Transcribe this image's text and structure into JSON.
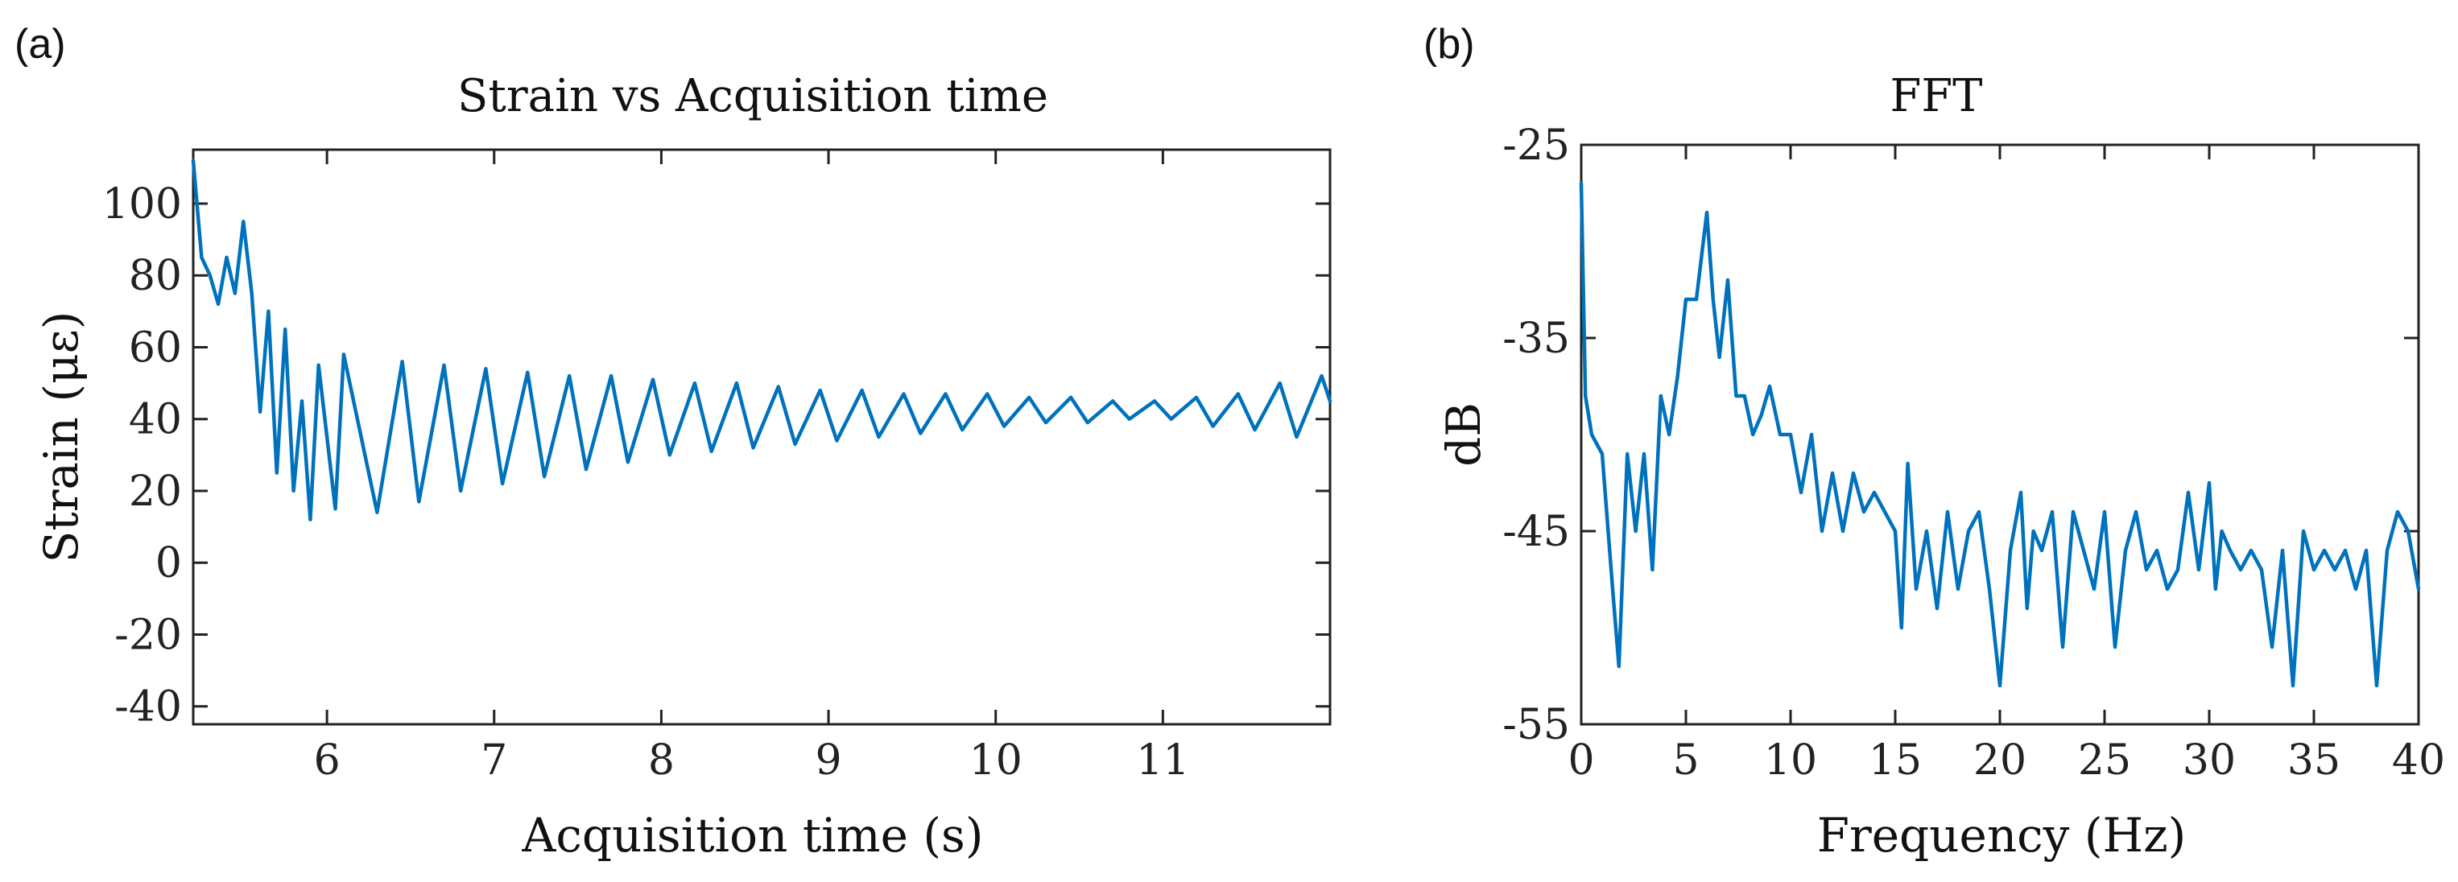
{
  "chart_data": [
    {
      "type": "line",
      "panel_label": "(a)",
      "title": "Strain vs Acquisition time",
      "xlabel": "Acquisition time (s)",
      "ylabel": "Strain (με)",
      "xlim": [
        5.2,
        12.0
      ],
      "ylim": [
        -45,
        115
      ],
      "xticks": [
        6,
        7,
        8,
        9,
        10,
        11
      ],
      "yticks": [
        -40,
        -20,
        0,
        20,
        40,
        60,
        80,
        100
      ],
      "series": [
        {
          "name": "Strain",
          "color": "#0072BD",
          "x": [
            5.2,
            5.25,
            5.3,
            5.35,
            5.4,
            5.45,
            5.5,
            5.55,
            5.6,
            5.65,
            5.7,
            5.75,
            5.8,
            5.85,
            5.9,
            5.95,
            6.05,
            6.1,
            6.3,
            6.45,
            6.55,
            6.7,
            6.8,
            6.95,
            7.05,
            7.2,
            7.3,
            7.45,
            7.55,
            7.7,
            7.8,
            7.95,
            8.05,
            8.2,
            8.3,
            8.45,
            8.55,
            8.7,
            8.8,
            8.95,
            9.05,
            9.2,
            9.3,
            9.45,
            9.55,
            9.7,
            9.8,
            9.95,
            10.05,
            10.2,
            10.3,
            10.45,
            10.55,
            10.7,
            10.8,
            10.95,
            11.05,
            11.2,
            11.3,
            11.45,
            11.55,
            11.7,
            11.8,
            11.95,
            12.0
          ],
          "y": [
            112,
            85,
            80,
            72,
            85,
            75,
            95,
            75,
            42,
            70,
            25,
            65,
            20,
            45,
            12,
            55,
            15,
            58,
            14,
            56,
            17,
            55,
            20,
            54,
            22,
            53,
            24,
            52,
            26,
            52,
            28,
            51,
            30,
            50,
            31,
            50,
            32,
            49,
            33,
            48,
            34,
            48,
            35,
            47,
            36,
            47,
            37,
            47,
            38,
            46,
            39,
            46,
            39,
            45,
            40,
            45,
            40,
            46,
            38,
            47,
            37,
            50,
            35,
            52,
            45
          ]
        }
      ]
    },
    {
      "type": "line",
      "panel_label": "(b)",
      "title": "FFT",
      "xlabel": "Frequency (Hz)",
      "ylabel": "dB",
      "xlim": [
        0,
        40
      ],
      "ylim": [
        -55,
        -25
      ],
      "xticks": [
        0,
        5,
        10,
        15,
        20,
        25,
        30,
        35,
        40
      ],
      "yticks": [
        -25,
        -35,
        -45,
        -55
      ],
      "series": [
        {
          "name": "FFT",
          "color": "#0072BD",
          "x": [
            0,
            0.2,
            0.5,
            1,
            1.5,
            1.8,
            2.2,
            2.6,
            3,
            3.4,
            3.8,
            4.2,
            4.6,
            5,
            5.5,
            6,
            6.3,
            6.6,
            7,
            7.4,
            7.8,
            8.2,
            8.6,
            9,
            9.5,
            10,
            10.5,
            11,
            11.5,
            12,
            12.5,
            13,
            13.5,
            14,
            14.5,
            15,
            15.3,
            15.6,
            16,
            16.5,
            17,
            17.5,
            18,
            18.5,
            19,
            19.5,
            20,
            20.5,
            21,
            21.3,
            21.6,
            22,
            22.5,
            23,
            23.5,
            24,
            24.5,
            25,
            25.5,
            26,
            26.5,
            27,
            27.5,
            28,
            28.5,
            29,
            29.5,
            30,
            30.3,
            30.6,
            31,
            31.5,
            32,
            32.5,
            33,
            33.5,
            34,
            34.5,
            35,
            35.5,
            36,
            36.5,
            37,
            37.5,
            38,
            38.5,
            39,
            39.5,
            40
          ],
          "y": [
            -27,
            -38,
            -40,
            -41,
            -48,
            -52,
            -41,
            -45,
            -41,
            -47,
            -38,
            -40,
            -37,
            -33,
            -33,
            -28.5,
            -33,
            -36,
            -32,
            -38,
            -38,
            -40,
            -39,
            -37.5,
            -40,
            -40,
            -43,
            -40,
            -45,
            -42,
            -45,
            -42,
            -44,
            -43,
            -44,
            -45,
            -50,
            -41.5,
            -48,
            -45,
            -49,
            -44,
            -48,
            -45,
            -44,
            -48,
            -53,
            -46,
            -43,
            -49,
            -45,
            -46,
            -44,
            -51,
            -44,
            -46,
            -48,
            -44,
            -51,
            -46,
            -44,
            -47,
            -46,
            -48,
            -47,
            -43,
            -47,
            -42.5,
            -48,
            -45,
            -46,
            -47,
            -46,
            -47,
            -51,
            -46,
            -53,
            -45,
            -47,
            -46,
            -47,
            -46,
            -48,
            -46,
            -53,
            -46,
            -44,
            -45,
            -48
          ]
        }
      ]
    }
  ]
}
